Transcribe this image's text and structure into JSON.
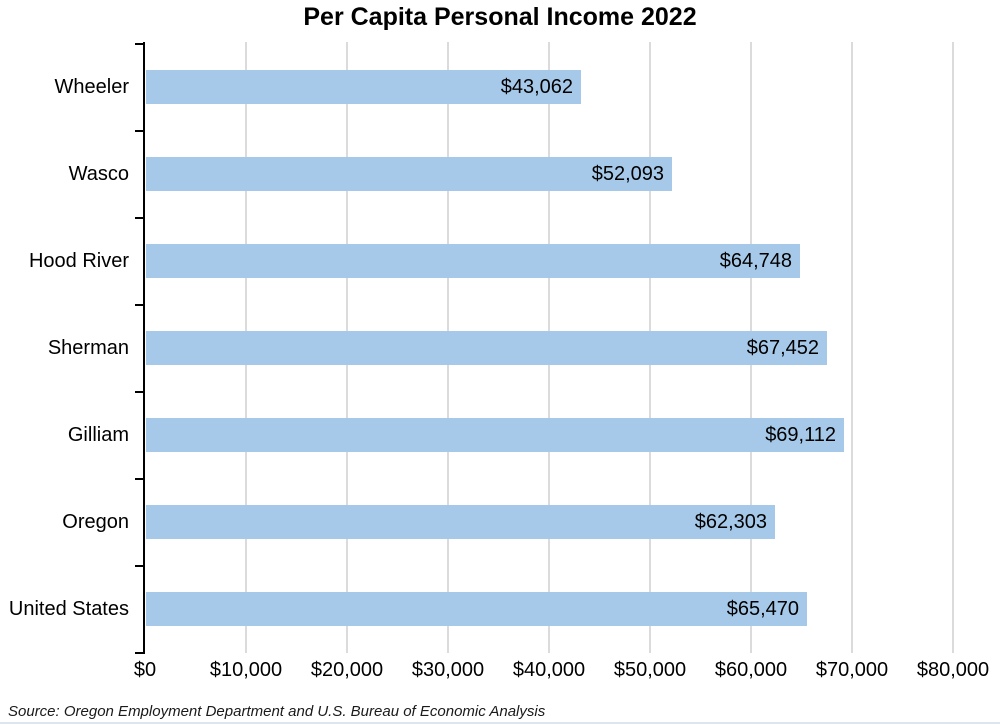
{
  "page": {
    "source_note": "Source: Oregon Employment Department and U.S. Bureau of Economic Analysis"
  },
  "chart_data": {
    "type": "bar",
    "orientation": "horizontal",
    "title": "Per Capita Personal Income 2022",
    "categories": [
      "Wheeler",
      "Wasco",
      "Hood River",
      "Sherman",
      "Gilliam",
      "Oregon",
      "United States"
    ],
    "values": [
      43062,
      52093,
      64748,
      67452,
      69112,
      62303,
      65470
    ],
    "value_labels": [
      "$43,062",
      "$52,093",
      "$64,748",
      "$67,452",
      "$69,112",
      "$62,303",
      "$65,470"
    ],
    "x_ticks": [
      0,
      10000,
      20000,
      30000,
      40000,
      50000,
      60000,
      70000,
      80000
    ],
    "x_tick_labels": [
      "$0",
      "$10,000",
      "$20,000",
      "$30,000",
      "$40,000",
      "$50,000",
      "$60,000",
      "$70,000",
      "$80,000"
    ],
    "xlim": [
      0,
      80000
    ],
    "xlabel": "",
    "ylabel": "",
    "grid": true,
    "legend": false,
    "bar_color": "#A6C9E9",
    "gridline_color": "#DBDBDB",
    "axis_color": "#000000",
    "label_color": "#000000"
  }
}
